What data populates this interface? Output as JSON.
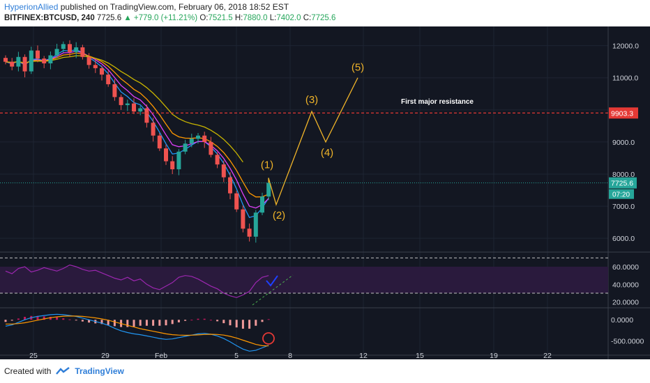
{
  "header": {
    "author": "HyperionAllied",
    "published": "published on TradingView.com, February 06, 2018 18:52 EST"
  },
  "ticker": {
    "symbol": "BITFINEX:BTCUSD, 240",
    "last": "7725.6",
    "change": "▲ +779.0 (+11.21%)",
    "o_label": "O:",
    "o": "7521.5",
    "h_label": "H:",
    "h": "7880.0",
    "l_label": "L:",
    "l": "7402.0",
    "c_label": "C:",
    "c": "7725.6"
  },
  "footer": {
    "created_with": "Created with",
    "brand": "TradingView"
  },
  "annotation": "First major resistance",
  "colors": {
    "up": "#26a69a",
    "down": "#ef5350",
    "wave": "#f0b429",
    "resistance": "#e53935",
    "rsi": "#9c27b0",
    "macd": "#2196f3",
    "signal": "#ff9800",
    "ema_slow": "#c8b400"
  },
  "chart_data": [
    {
      "type": "line",
      "x": [
        "25",
        "29",
        "Feb",
        "5",
        "8",
        "12",
        "15",
        "19",
        "22"
      ],
      "price_axis_ticks": [
        "6000.0",
        "7000.0",
        "8000.0",
        "9000.0",
        "10000.0",
        "11000.0",
        "12000.0"
      ],
      "ylim": [
        5700,
        12600
      ],
      "close_series": [
        11500,
        11350,
        11650,
        11200,
        11850,
        11600,
        11450,
        11700,
        11900,
        12050,
        11800,
        11950,
        11650,
        11400,
        11300,
        11100,
        10800,
        10400,
        10150,
        10200,
        9950,
        10050,
        9600,
        9200,
        8800,
        8400,
        8150,
        8700,
        8950,
        9100,
        9200,
        9000,
        8600,
        8300,
        7900,
        7400,
        6900,
        6300,
        6050,
        6800,
        7300,
        7725.6
      ],
      "elliott_waves": [
        {
          "label": "(1)",
          "price": 7880
        },
        {
          "label": "(2)",
          "price": 7050
        },
        {
          "label": "(3)",
          "price": 9950
        },
        {
          "label": "(4)",
          "price": 9000
        },
        {
          "label": "(5)",
          "price": 11000
        }
      ],
      "resistance": {
        "label": "9903.3",
        "price": 9903.3
      },
      "last_price_label": "7725.6",
      "countdown_label": "07:20",
      "rsi": {
        "ticks": [
          "20.0000",
          "40.0000",
          "60.0000"
        ],
        "values": [
          55,
          52,
          58,
          60,
          54,
          56,
          59,
          57,
          55,
          58,
          62,
          60,
          57,
          55,
          56,
          53,
          50,
          47,
          45,
          48,
          44,
          46,
          40,
          36,
          34,
          38,
          42,
          48,
          50,
          49,
          46,
          42,
          38,
          35,
          30,
          27,
          25,
          28,
          32,
          42,
          48,
          50
        ]
      },
      "macd": {
        "ticks": [
          "0.0000",
          "-500.0000"
        ],
        "macd_values": [
          -150,
          -120,
          -60,
          0,
          50,
          80,
          100,
          120,
          130,
          120,
          100,
          80,
          40,
          0,
          -40,
          -80,
          -130,
          -200,
          -260,
          -300,
          -330,
          -350,
          -380,
          -410,
          -440,
          -460,
          -450,
          -420,
          -390,
          -360,
          -330,
          -320,
          -340,
          -380,
          -440,
          -520,
          -610,
          -690,
          -740,
          -720,
          -660,
          -600
        ],
        "signal_values": [
          -100,
          -100,
          -90,
          -70,
          -40,
          -10,
          20,
          50,
          70,
          85,
          90,
          88,
          80,
          65,
          45,
          20,
          -10,
          -50,
          -90,
          -130,
          -170,
          -210,
          -240,
          -270,
          -300,
          -330,
          -350,
          -360,
          -365,
          -362,
          -355,
          -345,
          -340,
          -345,
          -360,
          -390,
          -430,
          -480,
          -530,
          -580,
          -610,
          -615
        ]
      }
    }
  ]
}
